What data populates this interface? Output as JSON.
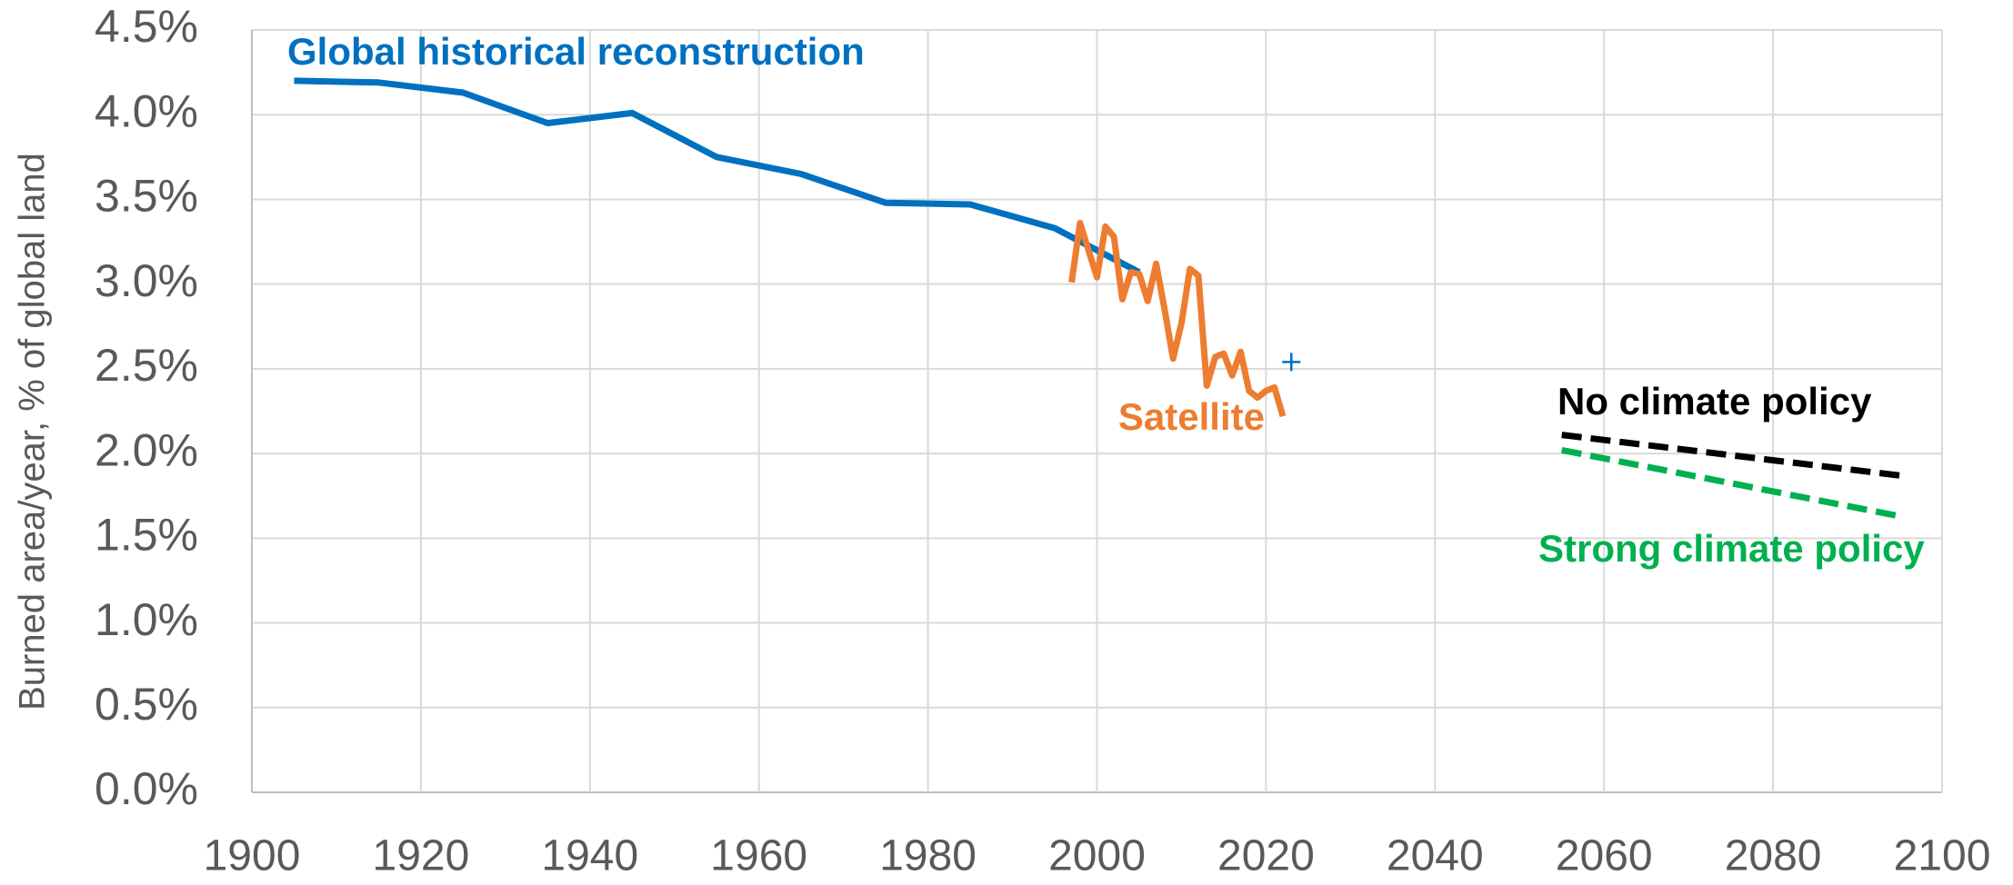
{
  "chart_data": {
    "type": "line",
    "y_label": "Burned area/year, % of global land",
    "xlim": [
      1900,
      2100
    ],
    "xticks": [
      1900,
      1920,
      1940,
      1960,
      1980,
      2000,
      2020,
      2040,
      2060,
      2080,
      2100
    ],
    "ylim": [
      0,
      4.5
    ],
    "yticks": [
      {
        "value": 0,
        "label": "0.0%"
      },
      {
        "value": 0.5,
        "label": "0.5%"
      },
      {
        "value": 1,
        "label": "1.0%"
      },
      {
        "value": 1.5,
        "label": "1.5%"
      },
      {
        "value": 2,
        "label": "2.0%"
      },
      {
        "value": 2.5,
        "label": "2.5%"
      },
      {
        "value": 3,
        "label": "3.0%"
      },
      {
        "value": 3.5,
        "label": "3.5%"
      },
      {
        "value": 4,
        "label": "4.0%"
      },
      {
        "value": 4.5,
        "label": "4.5%"
      }
    ],
    "grid": true,
    "series": [
      {
        "name": "Global historical reconstruction",
        "color": "#0070c0",
        "dashed": false,
        "x": [
          1905,
          1915,
          1925,
          1935,
          1945,
          1955,
          1965,
          1975,
          1985,
          1995,
          2005
        ],
        "values": [
          4.2,
          4.19,
          4.13,
          3.95,
          4.01,
          3.75,
          3.65,
          3.48,
          3.47,
          3.33,
          3.07
        ]
      },
      {
        "name": "Satellite",
        "color": "#ed7d31",
        "dashed": false,
        "x": [
          1997,
          1998,
          1999,
          2000,
          2001,
          2002,
          2003,
          2004,
          2005,
          2006,
          2007,
          2008,
          2009,
          2010,
          2011,
          2012,
          2013,
          2014,
          2015,
          2016,
          2017,
          2018,
          2019,
          2020,
          2021,
          2022
        ],
        "values": [
          3.01,
          3.36,
          3.2,
          3.04,
          3.34,
          3.28,
          2.91,
          3.07,
          3.06,
          2.9,
          3.12,
          2.85,
          2.56,
          2.77,
          3.09,
          3.05,
          2.4,
          2.57,
          2.59,
          2.46,
          2.6,
          2.37,
          2.33,
          2.37,
          2.39,
          2.22
        ]
      },
      {
        "name": "No climate policy",
        "color": "#000000",
        "dashed": true,
        "x": [
          2055,
          2095
        ],
        "values": [
          2.11,
          1.87
        ]
      },
      {
        "name": "Strong climate policy",
        "color": "#00b050",
        "dashed": true,
        "x": [
          2055,
          2095
        ],
        "values": [
          2.02,
          1.63
        ]
      }
    ],
    "markers": {
      "color": "#0070c0",
      "x": [
        2023
      ],
      "values": [
        2.54
      ]
    }
  }
}
